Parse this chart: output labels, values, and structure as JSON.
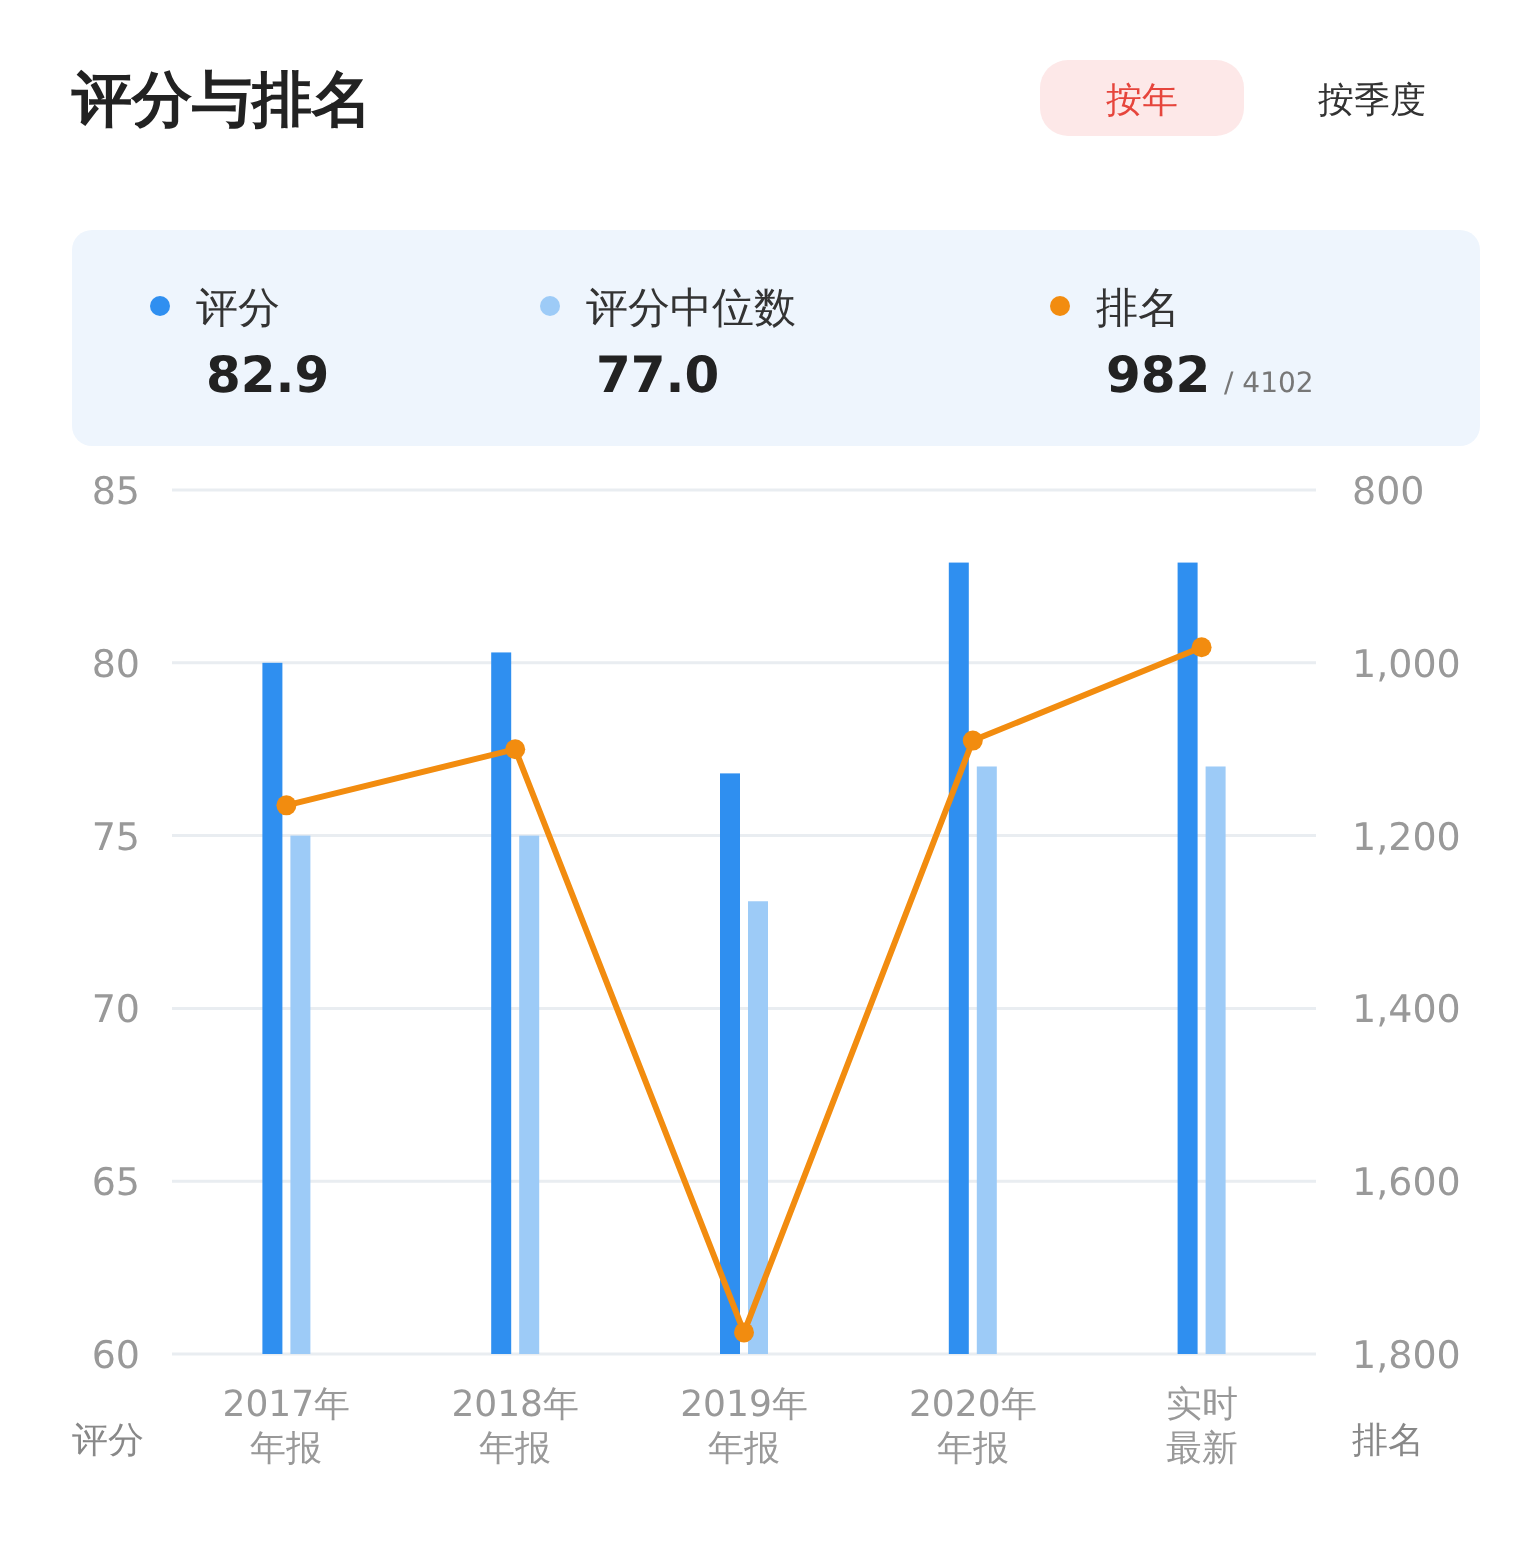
{
  "chart_data": {
    "type": "bar",
    "title": "评分与排名",
    "categories": [
      "2017年年报",
      "2018年年报",
      "2019年年报",
      "2020年年报",
      "实时最新"
    ],
    "series": [
      {
        "name": "评分",
        "color": "#2f8ff0",
        "values": [
          80.0,
          80.3,
          76.8,
          82.9,
          82.9
        ]
      },
      {
        "name": "评分中位数",
        "color": "#9dcbf7",
        "values": [
          75.0,
          75.0,
          73.1,
          77.0,
          77.0
        ]
      },
      {
        "name": "排名",
        "type": "line",
        "axis": "y2",
        "color": "#f28c0f",
        "marker": "circle",
        "values": [
          1165,
          1100,
          1775,
          1090,
          982
        ]
      }
    ],
    "ylabel": "评分",
    "y2label": "排名",
    "ylim": [
      60,
      85
    ],
    "yticks": [
      60,
      65,
      70,
      75,
      80,
      85
    ],
    "y2lim": [
      1800,
      800
    ],
    "y2ticks": [
      800,
      {
        "value": 1000,
        "label": "1,000"
      },
      {
        "value": 1200,
        "label": "1,200"
      },
      {
        "value": 1400,
        "label": "1,400"
      },
      {
        "value": 1600,
        "label": "1,600"
      },
      {
        "value": 1800,
        "label": "1,800"
      }
    ],
    "grid": "y",
    "legend": "top",
    "annotations": [
      "按年",
      "按季度",
      "82.9",
      "77.0",
      "982",
      "/ 4102"
    ]
  }
}
